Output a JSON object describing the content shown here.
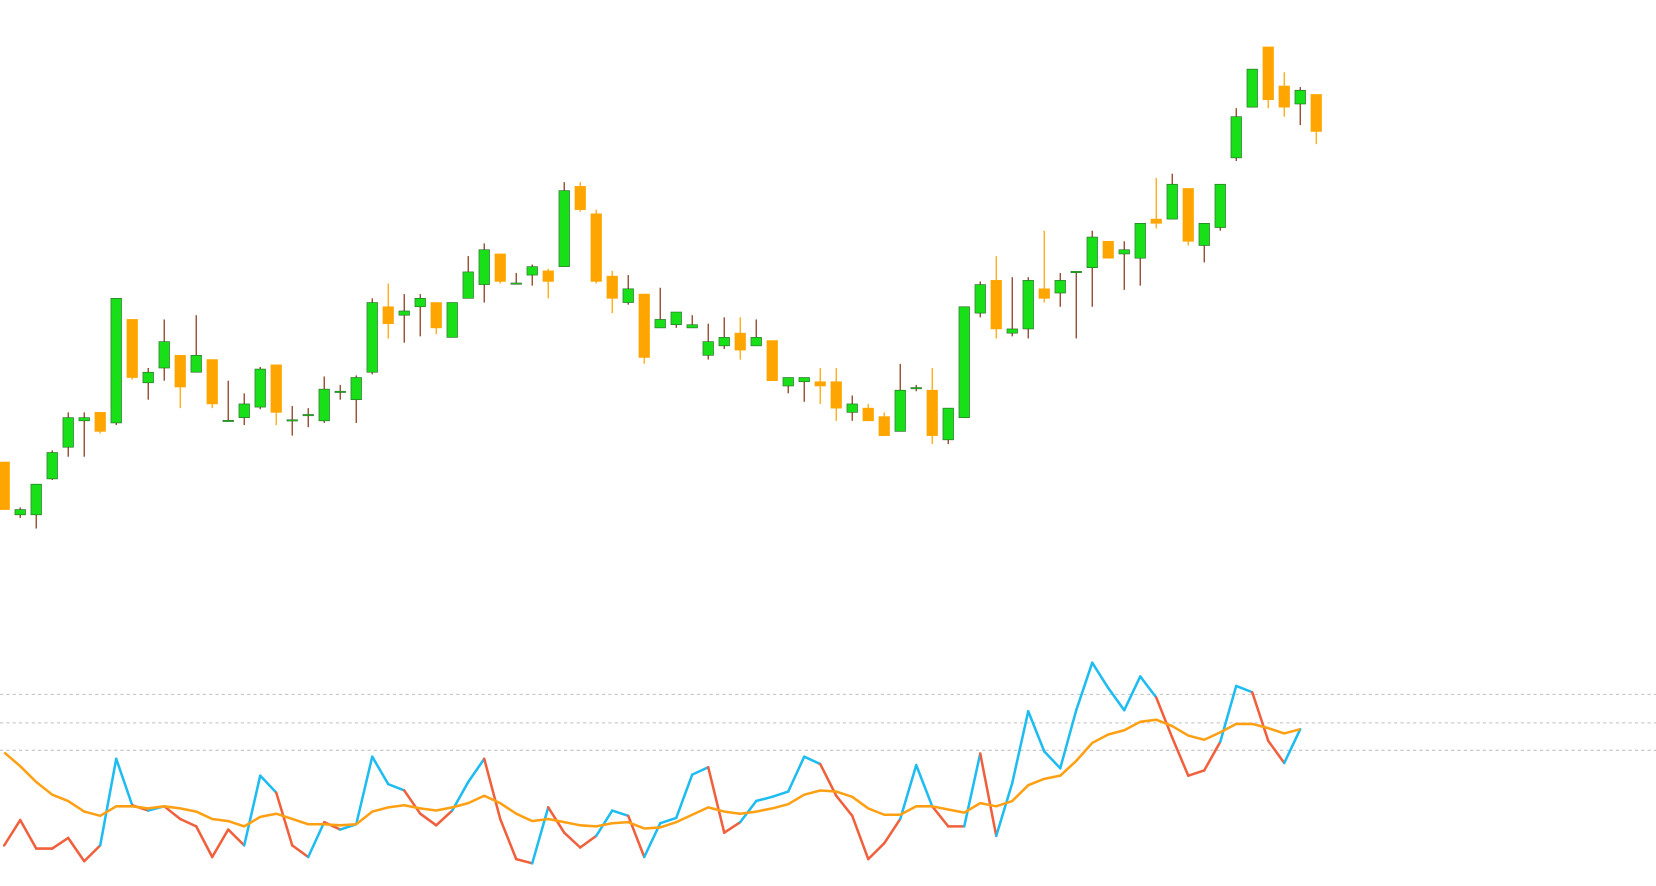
{
  "chart_data": [
    {
      "type": "candlestick",
      "up_color": "#18e018",
      "down_color": "#ffa500",
      "up_wick_color": "#8b3a1a",
      "down_wick_color": "#ffa500",
      "ylim": [
        0,
        500
      ],
      "open": [
        63,
        13,
        13,
        47,
        77,
        102,
        110,
        100,
        198,
        138,
        152,
        164,
        148,
        160,
        102,
        105,
        115,
        155,
        102,
        107,
        102,
        129,
        122,
        148,
        210,
        202,
        210,
        214,
        181,
        218,
        231,
        260,
        232,
        240,
        244,
        248,
        324,
        298,
        239,
        214,
        222,
        190,
        193,
        190,
        164,
        173,
        185,
        173,
        178,
        135,
        139,
        139,
        139,
        110,
        114,
        106,
        92,
        133,
        131,
        84,
        105,
        204,
        235,
        185,
        189,
        227,
        223,
        243,
        247,
        272,
        260,
        256,
        293,
        293,
        322,
        268,
        285,
        351,
        399,
        456,
        419,
        402,
        411
      ],
      "high": [
        63,
        20,
        42,
        74,
        110,
        110,
        110,
        218,
        198,
        152,
        198,
        164,
        202,
        160,
        140,
        128,
        153,
        155,
        116,
        114,
        144,
        136,
        145,
        218,
        232,
        222,
        222,
        214,
        214,
        258,
        270,
        260,
        242,
        250,
        246,
        328,
        328,
        302,
        244,
        240,
        222,
        228,
        205,
        202,
        194,
        200,
        200,
        198,
        178,
        143,
        143,
        152,
        152,
        126,
        118,
        110,
        156,
        136,
        152,
        114,
        210,
        234,
        258,
        238,
        238,
        282,
        242,
        243.5,
        282,
        272,
        272,
        289,
        332,
        336,
        322,
        289,
        326,
        398,
        435,
        456,
        432,
        418,
        411
      ],
      "low": [
        18,
        10,
        0,
        46,
        68,
        68,
        90,
        98,
        141,
        122,
        140,
        114,
        148,
        114,
        102,
        98,
        113,
        98,
        88,
        96,
        100,
        122,
        100,
        146,
        180,
        176,
        182,
        184,
        181,
        218,
        214,
        232,
        232,
        230,
        218,
        248,
        300,
        232,
        204,
        212,
        156,
        190,
        190,
        190,
        160,
        170,
        160,
        173,
        140,
        128,
        120,
        118,
        102,
        102,
        102,
        88,
        92,
        130,
        80,
        80,
        105,
        200,
        180,
        182,
        180,
        214,
        210,
        180,
        210,
        256,
        226,
        230,
        284,
        293,
        268,
        252,
        282,
        348,
        399,
        398,
        390,
        382,
        364
      ],
      "close": [
        18,
        18,
        42,
        72,
        105,
        105,
        92,
        218,
        143,
        148,
        177,
        134,
        164,
        118,
        102.5,
        118,
        151,
        110,
        103,
        108,
        132,
        130,
        143,
        214,
        194,
        206,
        218,
        190,
        214,
        243,
        264,
        234,
        232.5,
        248,
        234,
        320,
        302,
        234,
        218,
        227,
        162,
        198,
        205,
        193,
        177,
        181,
        169,
        181,
        140,
        143,
        143,
        135,
        114,
        118,
        102,
        88,
        131,
        133.5,
        88,
        114,
        210,
        231,
        189,
        189,
        235,
        218,
        235,
        243.5,
        276,
        256,
        264,
        289,
        289,
        326,
        272,
        289,
        326,
        390,
        435,
        406,
        399,
        415,
        376
      ]
    },
    {
      "type": "line",
      "ylim": [
        0,
        210
      ],
      "levels": [
        120,
        146,
        173
      ],
      "series": [
        {
          "color": "#1ebcf0",
          "color_below": "#f0603c",
          "values": [
            30,
            54,
            27,
            27,
            37,
            15,
            30,
            112,
            68,
            63,
            67,
            55,
            48,
            19,
            45,
            30,
            96,
            80,
            30,
            19,
            52,
            45,
            50,
            114,
            88,
            82,
            60,
            49,
            63,
            90,
            112,
            55,
            17,
            13,
            66,
            42,
            28,
            39,
            63,
            58,
            19,
            51,
            56,
            97,
            104,
            42,
            52,
            72,
            76,
            81,
            114,
            107,
            77,
            58,
            17,
            32,
            55,
            106,
            67,
            48,
            48,
            117,
            39,
            89,
            157,
            119,
            103,
            158,
            203,
            179,
            158,
            190,
            170,
            132,
            96,
            101,
            128,
            181,
            175,
            129,
            108,
            140,
            null
          ]
        },
        {
          "color": "#ffa014",
          "values": [
            118,
            105,
            90,
            78,
            72,
            62,
            58,
            67,
            67,
            65,
            67,
            65,
            62,
            55,
            53,
            48,
            57,
            60,
            55,
            50,
            50,
            49,
            50,
            62,
            66,
            68,
            65,
            63,
            66,
            70,
            77,
            70,
            60,
            53,
            55,
            52,
            49,
            48,
            51,
            52,
            46,
            47,
            52,
            59,
            66,
            62,
            60,
            62,
            65,
            69,
            78,
            82,
            81,
            76,
            65,
            59,
            59,
            67,
            67,
            64,
            61,
            70,
            67,
            72,
            87,
            93,
            96,
            110,
            127,
            135,
            139,
            147,
            149,
            143,
            134,
            130,
            137,
            145,
            145,
            141,
            136,
            140,
            null
          ]
        }
      ]
    }
  ]
}
